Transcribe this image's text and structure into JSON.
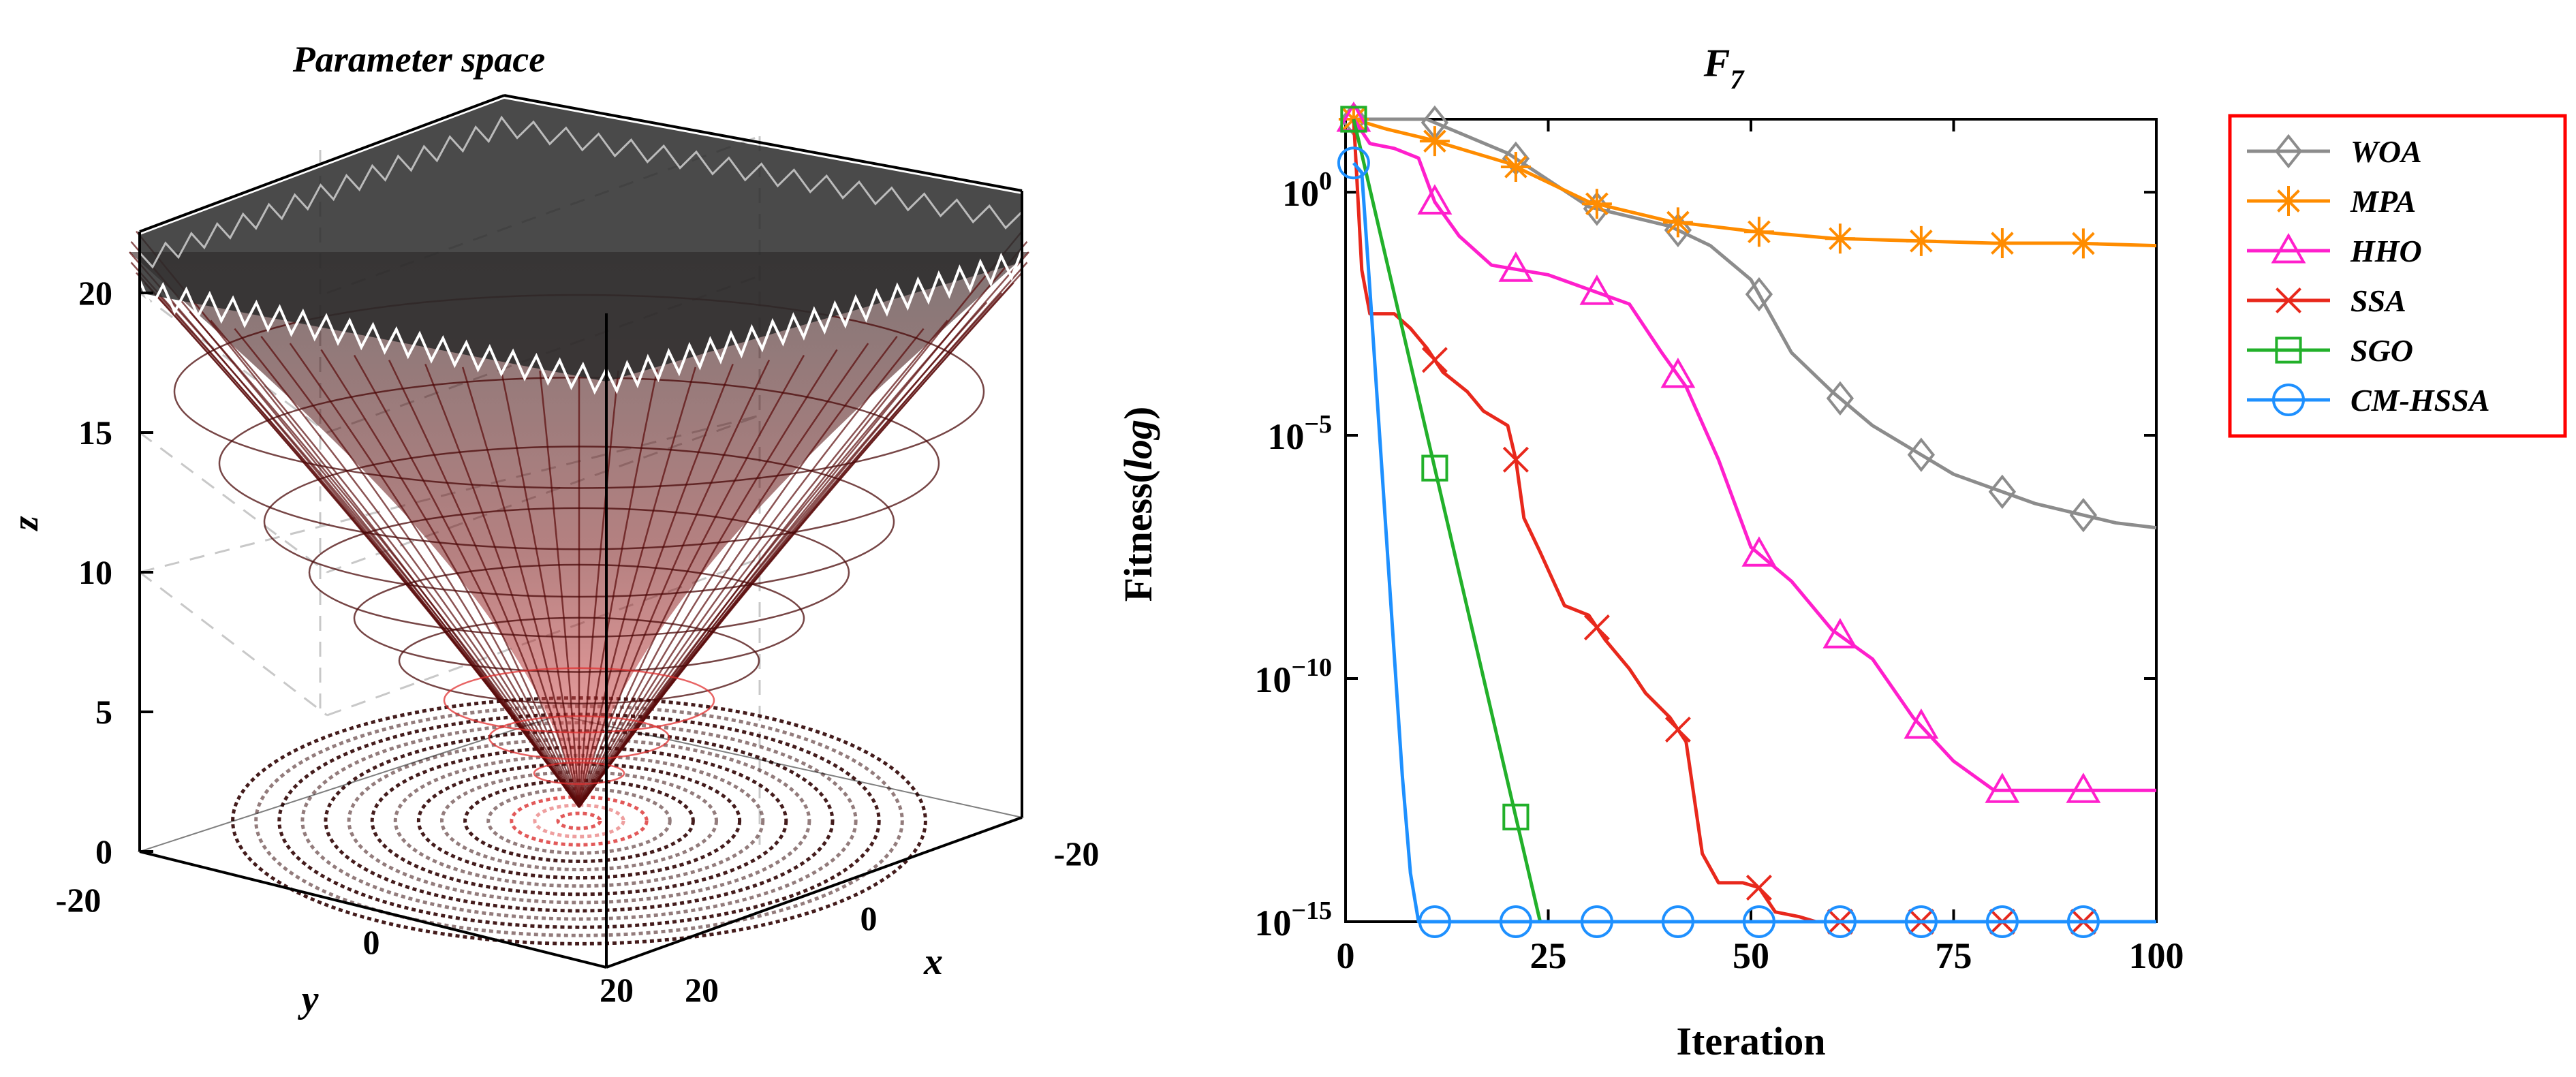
{
  "chart_data": [
    {
      "type": "surface3d",
      "title": "Parameter space",
      "xlabel": "x",
      "ylabel": "y",
      "zlabel": "z",
      "x_ticks": [
        "-20",
        "0",
        "20"
      ],
      "y_ticks": [
        "-20",
        "0",
        "20"
      ],
      "z_ticks": [
        "0",
        "5",
        "10",
        "15",
        "20"
      ],
      "zlim": [
        0,
        22
      ],
      "xlim": [
        -20,
        20
      ],
      "ylim": [
        -20,
        20
      ]
    },
    {
      "type": "line",
      "title": "F",
      "title_subscript": "7",
      "xlabel": "Iteration",
      "ylabel_main": "Fitness(",
      "ylabel_italic": "log",
      "ylabel_close": ")",
      "xlim": [
        0,
        100
      ],
      "ylim_log10": [
        -15,
        1.5
      ],
      "y_scale": "log",
      "x_ticks": [
        "0",
        "25",
        "50",
        "75",
        "100"
      ],
      "y_ticks": [
        {
          "base": "10",
          "exp": "0",
          "value": 0
        },
        {
          "base": "10",
          "exp": "−5",
          "value": -5
        },
        {
          "base": "10",
          "exp": "−10",
          "value": -10
        },
        {
          "base": "10",
          "exp": "−15",
          "value": -15
        }
      ],
      "legend_position": "outside-right-top",
      "series": [
        {
          "name": "WOA",
          "color": "#8c8c8c",
          "marker": "diamond",
          "points": [
            [
              1,
              1.5
            ],
            [
              10,
              1.5
            ],
            [
              20,
              0.8
            ],
            [
              30,
              -0.3
            ],
            [
              40,
              -0.7
            ],
            [
              45,
              -1.1
            ],
            [
              50,
              -1.8
            ],
            [
              55,
              -3.3
            ],
            [
              60,
              -4.1
            ],
            [
              65,
              -4.8
            ],
            [
              70,
              -5.3
            ],
            [
              75,
              -5.8
            ],
            [
              80,
              -6.1
            ],
            [
              85,
              -6.4
            ],
            [
              90,
              -6.6
            ],
            [
              95,
              -6.8
            ],
            [
              100,
              -6.9
            ]
          ],
          "markers": [
            1,
            11,
            21,
            31,
            41,
            51,
            61,
            71,
            81,
            91
          ]
        },
        {
          "name": "MPA",
          "color": "#ff8c00",
          "marker": "asterisk",
          "points": [
            [
              1,
              1.5
            ],
            [
              5,
              1.3
            ],
            [
              10,
              1.1
            ],
            [
              20,
              0.6
            ],
            [
              30,
              -0.2
            ],
            [
              40,
              -0.6
            ],
            [
              50,
              -0.8
            ],
            [
              60,
              -0.95
            ],
            [
              70,
              -1.0
            ],
            [
              80,
              -1.05
            ],
            [
              90,
              -1.05
            ],
            [
              100,
              -1.1
            ]
          ],
          "markers": [
            1,
            11,
            21,
            31,
            41,
            51,
            61,
            71,
            81,
            91
          ]
        },
        {
          "name": "HHO",
          "color": "#ff1fcc",
          "marker": "triangle",
          "points": [
            [
              1,
              1.5
            ],
            [
              3,
              1.0
            ],
            [
              6,
              0.9
            ],
            [
              9,
              0.7
            ],
            [
              11,
              -0.2
            ],
            [
              14,
              -0.9
            ],
            [
              18,
              -1.5
            ],
            [
              25,
              -1.7
            ],
            [
              30,
              -2.0
            ],
            [
              35,
              -2.3
            ],
            [
              39,
              -3.3
            ],
            [
              42,
              -4.0
            ],
            [
              46,
              -5.5
            ],
            [
              50,
              -7.3
            ],
            [
              55,
              -8.0
            ],
            [
              60,
              -9.0
            ],
            [
              65,
              -9.6
            ],
            [
              70,
              -10.8
            ],
            [
              75,
              -11.7
            ],
            [
              80,
              -12.3
            ],
            [
              90,
              -12.3
            ],
            [
              100,
              -12.3
            ]
          ],
          "markers": [
            1,
            11,
            21,
            31,
            41,
            51,
            61,
            71,
            81,
            91
          ]
        },
        {
          "name": "SSA",
          "color": "#e8281c",
          "marker": "x",
          "points": [
            [
              1,
              1.5
            ],
            [
              2,
              -1.6
            ],
            [
              3,
              -2.5
            ],
            [
              6,
              -2.5
            ],
            [
              8,
              -2.8
            ],
            [
              10,
              -3.2
            ],
            [
              12,
              -3.7
            ],
            [
              15,
              -4.1
            ],
            [
              17,
              -4.5
            ],
            [
              20,
              -4.8
            ],
            [
              21,
              -5.5
            ],
            [
              22,
              -6.7
            ],
            [
              24,
              -7.4
            ],
            [
              27,
              -8.5
            ],
            [
              30,
              -8.7
            ],
            [
              32,
              -9.2
            ],
            [
              35,
              -9.8
            ],
            [
              37,
              -10.3
            ],
            [
              40,
              -10.8
            ],
            [
              42,
              -11.3
            ],
            [
              44,
              -13.6
            ],
            [
              46,
              -14.2
            ],
            [
              49,
              -14.2
            ],
            [
              51,
              -14.3
            ],
            [
              53,
              -14.8
            ],
            [
              56,
              -14.9
            ],
            [
              58,
              -15.0
            ],
            [
              100,
              -15.0
            ]
          ],
          "markers": [
            11,
            21,
            31,
            41,
            51,
            61,
            71,
            81,
            91
          ]
        },
        {
          "name": "SGO",
          "color": "#22b02a",
          "marker": "square",
          "points": [
            [
              1,
              1.5
            ],
            [
              24,
              -15.0
            ],
            [
              100,
              -15.0
            ]
          ],
          "markers": [
            1,
            11,
            21
          ]
        },
        {
          "name": "CM-HSSA",
          "color": "#1e90ff",
          "marker": "circle",
          "points": [
            [
              1,
              0.6
            ],
            [
              2,
              0.4
            ],
            [
              3,
              -2.0
            ],
            [
              4,
              -4.5
            ],
            [
              5,
              -7.0
            ],
            [
              6,
              -9.5
            ],
            [
              7,
              -12.0
            ],
            [
              8,
              -14.0
            ],
            [
              9,
              -15.0
            ],
            [
              100,
              -15.0
            ]
          ],
          "markers": [
            1,
            11,
            21,
            31,
            41,
            51,
            61,
            71,
            81,
            91
          ]
        }
      ]
    }
  ]
}
